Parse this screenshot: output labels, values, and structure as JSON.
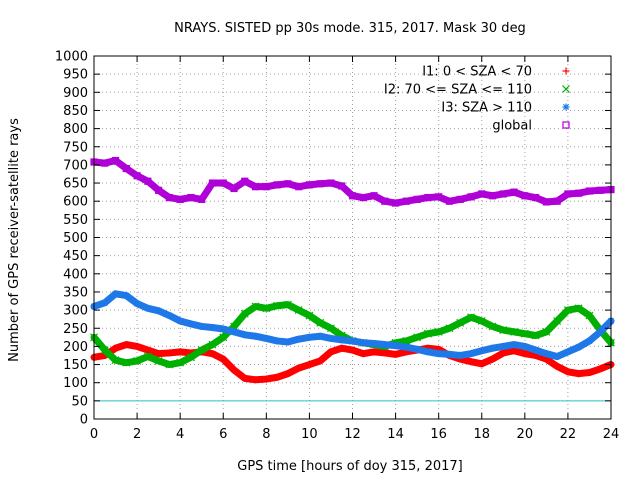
{
  "chart_data": {
    "type": "scatter",
    "title": "NRAYS. SISTED pp 30s mode. 315, 2017. Mask 30 deg",
    "xlabel": "GPS time [hours of doy 315, 2017]",
    "ylabel": "Number of GPS receiver-satellite rays",
    "xlim": [
      0,
      24
    ],
    "ylim": [
      0,
      1000
    ],
    "xticks": [
      0,
      2,
      4,
      6,
      8,
      10,
      12,
      14,
      16,
      18,
      20,
      22,
      24
    ],
    "yticks": [
      0,
      50,
      100,
      150,
      200,
      250,
      300,
      350,
      400,
      450,
      500,
      550,
      600,
      650,
      700,
      750,
      800,
      850,
      900,
      950,
      1000
    ],
    "grid": true,
    "legend_position": "top-right",
    "reference_line": {
      "y": 50,
      "color": "#2ec4c4"
    },
    "series": [
      {
        "name": "I1: 0 < SZA < 70",
        "symbol": "+",
        "color": "#ff0000",
        "x": [
          0,
          0.5,
          1,
          1.5,
          2,
          2.5,
          3,
          3.5,
          4,
          4.5,
          5,
          5.5,
          6,
          6.5,
          7,
          7.5,
          8,
          8.5,
          9,
          9.5,
          10,
          10.5,
          11,
          11.5,
          12,
          12.5,
          13,
          13.5,
          14,
          14.5,
          15,
          15.5,
          16,
          16.5,
          17,
          17.5,
          18,
          18.5,
          19,
          19.5,
          20,
          20.5,
          21,
          21.5,
          22,
          22.5,
          23,
          23.5,
          24
        ],
        "y": [
          170,
          175,
          195,
          205,
          200,
          190,
          180,
          182,
          185,
          182,
          185,
          180,
          165,
          135,
          112,
          108,
          110,
          115,
          125,
          140,
          150,
          160,
          185,
          195,
          190,
          180,
          185,
          182,
          178,
          185,
          190,
          195,
          192,
          175,
          165,
          158,
          152,
          165,
          182,
          188,
          180,
          175,
          165,
          145,
          130,
          125,
          128,
          138,
          150
        ]
      },
      {
        "name": "I2: 70 <= SZA <= 110",
        "symbol": "x",
        "color": "#00b000",
        "x": [
          0,
          0.5,
          1,
          1.5,
          2,
          2.5,
          3,
          3.5,
          4,
          4.5,
          5,
          5.5,
          6,
          6.5,
          7,
          7.5,
          8,
          8.5,
          9,
          9.5,
          10,
          10.5,
          11,
          11.5,
          12,
          12.5,
          13,
          13.5,
          14,
          14.5,
          15,
          15.5,
          16,
          16.5,
          17,
          17.5,
          18,
          18.5,
          19,
          19.5,
          20,
          20.5,
          21,
          21.5,
          22,
          22.5,
          23,
          23.5,
          24
        ],
        "y": [
          225,
          190,
          162,
          155,
          160,
          172,
          160,
          150,
          155,
          170,
          190,
          205,
          225,
          255,
          290,
          310,
          305,
          312,
          315,
          300,
          285,
          265,
          250,
          230,
          215,
          210,
          205,
          200,
          210,
          215,
          225,
          235,
          240,
          250,
          265,
          280,
          270,
          255,
          245,
          240,
          235,
          230,
          240,
          270,
          300,
          305,
          285,
          245,
          210
        ]
      },
      {
        "name": "I3: SZA > 110",
        "symbol": "*",
        "color": "#1e78e8",
        "x": [
          0,
          0.5,
          1,
          1.5,
          2,
          2.5,
          3,
          3.5,
          4,
          4.5,
          5,
          5.5,
          6,
          6.5,
          7,
          7.5,
          8,
          8.5,
          9,
          9.5,
          10,
          10.5,
          11,
          11.5,
          12,
          12.5,
          13,
          13.5,
          14,
          14.5,
          15,
          15.5,
          16,
          16.5,
          17,
          17.5,
          18,
          18.5,
          19,
          19.5,
          20,
          20.5,
          21,
          21.5,
          22,
          22.5,
          23,
          23.5,
          24
        ],
        "y": [
          310,
          320,
          345,
          340,
          318,
          305,
          298,
          285,
          270,
          262,
          255,
          252,
          248,
          240,
          232,
          228,
          222,
          215,
          212,
          220,
          225,
          228,
          222,
          218,
          215,
          210,
          208,
          205,
          202,
          198,
          192,
          185,
          180,
          178,
          175,
          180,
          188,
          195,
          200,
          205,
          200,
          190,
          180,
          172,
          185,
          198,
          215,
          240,
          270
        ]
      },
      {
        "name": "global",
        "symbol": "square",
        "color": "#b000d8",
        "x": [
          0,
          0.5,
          1,
          1.5,
          2,
          2.5,
          3,
          3.5,
          4,
          4.5,
          5,
          5.5,
          6,
          6.5,
          7,
          7.5,
          8,
          8.5,
          9,
          9.5,
          10,
          10.5,
          11,
          11.5,
          12,
          12.5,
          13,
          13.5,
          14,
          14.5,
          15,
          15.5,
          16,
          16.5,
          17,
          17.5,
          18,
          18.5,
          19,
          19.5,
          20,
          20.5,
          21,
          21.5,
          22,
          22.5,
          23,
          23.5,
          24
        ],
        "y": [
          708,
          705,
          712,
          690,
          670,
          655,
          630,
          610,
          605,
          610,
          605,
          650,
          650,
          635,
          655,
          640,
          640,
          645,
          648,
          640,
          645,
          648,
          650,
          642,
          615,
          610,
          615,
          600,
          595,
          600,
          605,
          610,
          612,
          600,
          605,
          612,
          620,
          615,
          620,
          625,
          615,
          610,
          598,
          600,
          620,
          622,
          628,
          630,
          632
        ]
      }
    ]
  }
}
